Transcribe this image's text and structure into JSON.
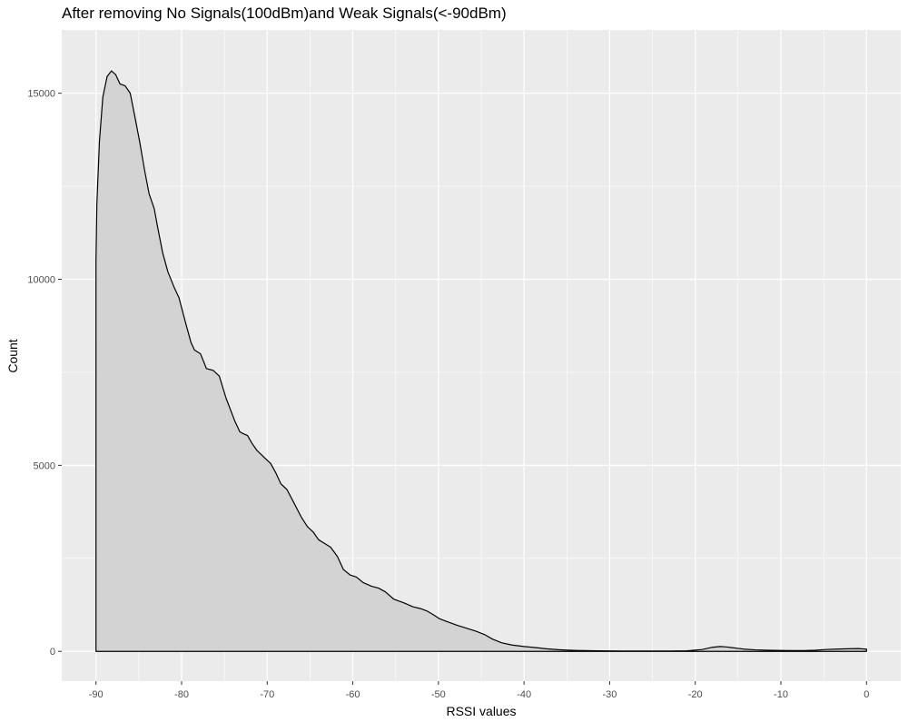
{
  "chart_data": {
    "type": "area",
    "title": "After removing No Signals(100dBm)and Weak Signals(<-90dBm)",
    "xlabel": "RSSI values",
    "ylabel": "Count",
    "xlim": [
      -94,
      4
    ],
    "ylim": [
      -800,
      16700
    ],
    "x_ticks": [
      -90,
      -80,
      -70,
      -60,
      -50,
      -40,
      -30,
      -20,
      -10,
      0
    ],
    "y_ticks": [
      0,
      5000,
      10000,
      15000
    ],
    "x_tick_labels": [
      "-90",
      "-80",
      "-70",
      "-60",
      "-50",
      "-40",
      "-30",
      "-20",
      "-10",
      "0"
    ],
    "y_tick_labels": [
      "0",
      "5000",
      "10000",
      "15000"
    ],
    "grid": true,
    "background_color": "#ebebeb",
    "fill_color": "#d3d3d3",
    "line_color": "#000000",
    "series": [
      {
        "x": [
          -90,
          -89.9,
          -89.6,
          -89.2,
          -88.7,
          -88.2,
          -87.7,
          -87.2,
          -86.6,
          -86.0,
          -85.4,
          -84.9,
          -84.3,
          -83.8,
          -83.2,
          -82.8,
          -82.2,
          -81.6,
          -80.9,
          -80.3,
          -79.5,
          -78.9,
          -78.5,
          -77.8,
          -77.1,
          -76.3,
          -75.6,
          -74.8,
          -73.8,
          -73.2,
          -72.8,
          -72.3,
          -71.8,
          -71.2,
          -70.3,
          -69.6,
          -69.0,
          -68.4,
          -67.7,
          -66.9,
          -66.0,
          -65.3,
          -64.6,
          -64.0,
          -63.3,
          -62.6,
          -61.8,
          -61.1,
          -60.3,
          -59.6,
          -58.8,
          -57.8,
          -57.0,
          -56.2,
          -55.2,
          -54.0,
          -53.0,
          -52.1,
          -51.3,
          -50.7,
          -49.9,
          -49.0,
          -47.8,
          -46.7,
          -45.6,
          -44.6,
          -43.7,
          -42.6,
          -41.4,
          -40.0,
          -38.6,
          -37.4,
          -36.0,
          -34.6,
          -33.0,
          -31.5,
          -30.0,
          -28.5,
          -26.5,
          -25.0,
          -23.0,
          -21.0,
          -19.2,
          -18.0,
          -17.1,
          -16.4,
          -15.7,
          -15.0,
          -14.3,
          -13.0,
          -11.5,
          -10.0,
          -8.5,
          -7.4,
          -6.0,
          -4.8,
          -3.6,
          -2.2,
          -1.0,
          0.0
        ],
        "values": [
          10500,
          12000,
          13700,
          14900,
          15450,
          15600,
          15500,
          15250,
          15200,
          15000,
          14300,
          13700,
          12900,
          12300,
          11900,
          11400,
          10700,
          10200,
          9800,
          9500,
          8800,
          8300,
          8100,
          8000,
          7600,
          7550,
          7400,
          6800,
          6200,
          5900,
          5850,
          5800,
          5600,
          5400,
          5200,
          5050,
          4800,
          4500,
          4350,
          4000,
          3600,
          3350,
          3200,
          3000,
          2900,
          2800,
          2550,
          2200,
          2050,
          2000,
          1850,
          1750,
          1700,
          1600,
          1400,
          1300,
          1200,
          1150,
          1080,
          1000,
          880,
          800,
          700,
          620,
          540,
          450,
          330,
          230,
          170,
          130,
          100,
          70,
          45,
          30,
          20,
          15,
          12,
          10,
          8,
          8,
          10,
          15,
          50,
          110,
          130,
          120,
          100,
          80,
          60,
          40,
          30,
          25,
          20,
          20,
          30,
          50,
          60,
          70,
          75,
          60
        ]
      }
    ]
  }
}
